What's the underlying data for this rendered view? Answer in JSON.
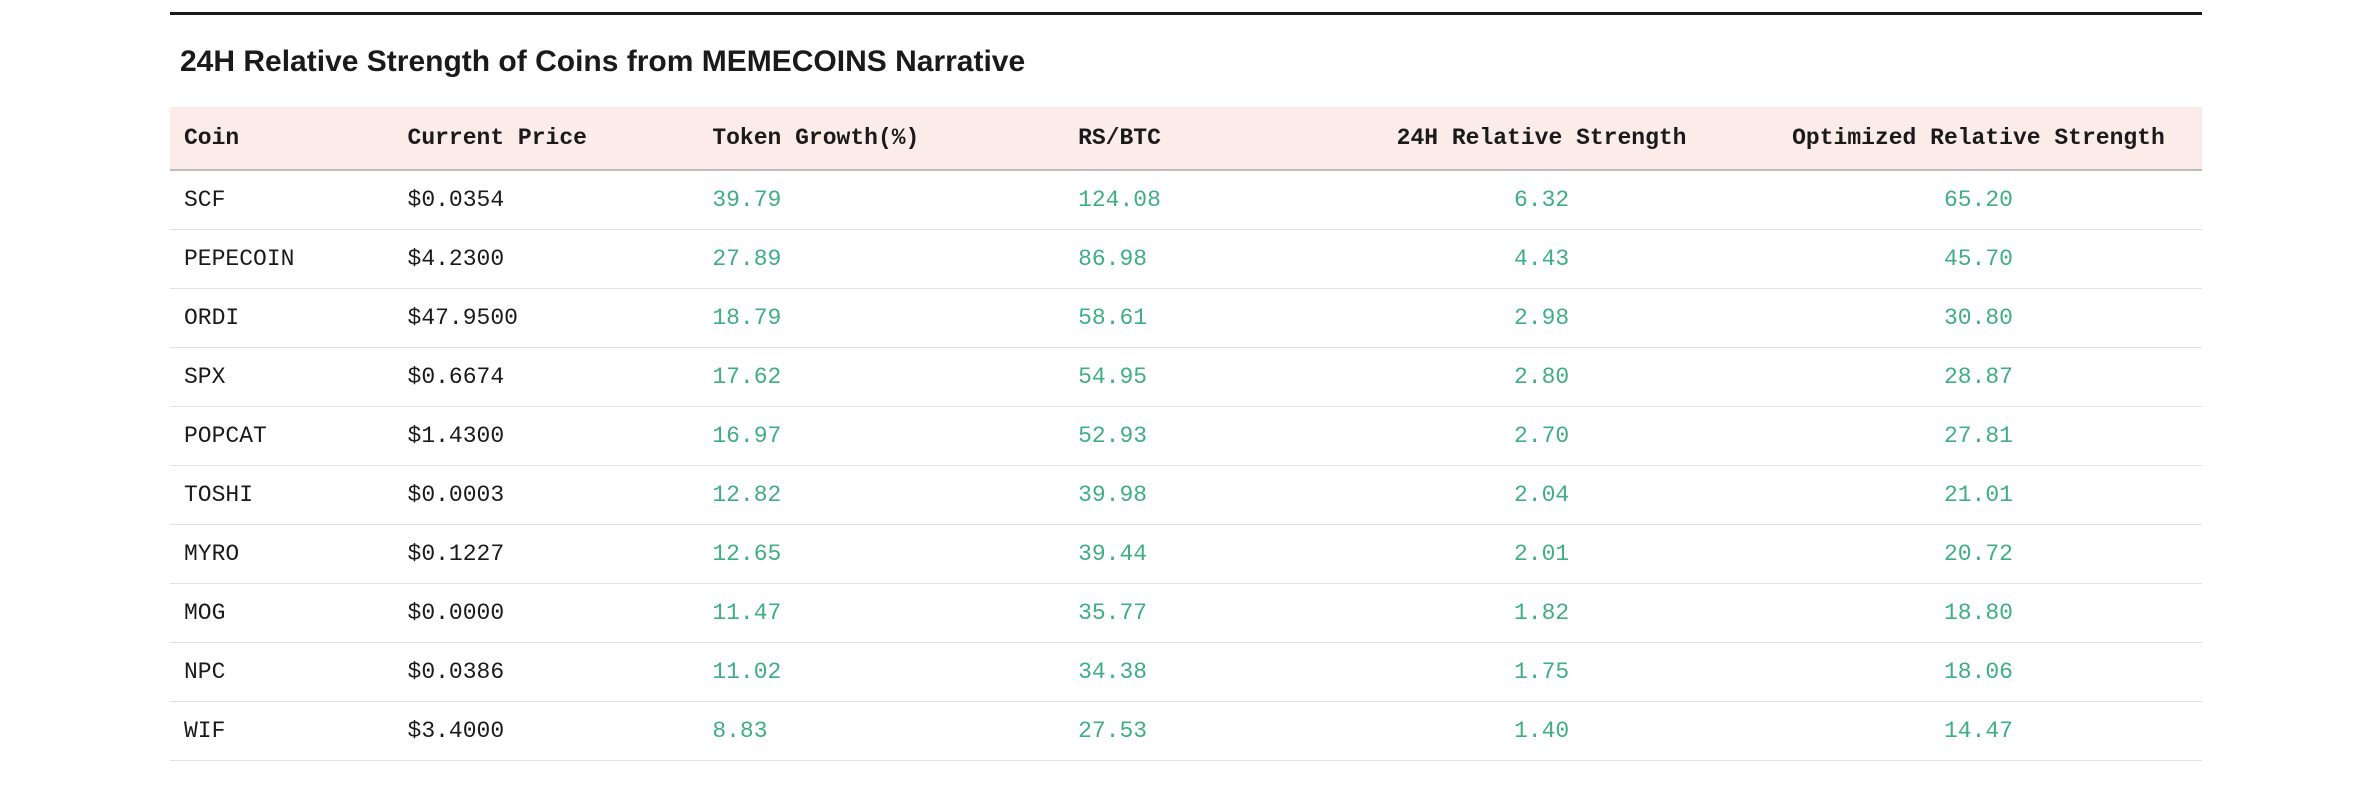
{
  "title": "24H Relative Strength of Coins from MEMECOINS Narrative",
  "table": {
    "header_bg": "#fbecea",
    "coin_text_color": "#1a1a1a",
    "price_text_color": "#1a1a1a",
    "positive_color": "#3fae84",
    "row_border_color": "#e2e2e2",
    "header_border_color": "#bdbdbd",
    "columns": {
      "coin": "Coin",
      "price": "Current Price",
      "growth": "Token Growth(%)",
      "rs_btc": "RS/BTC",
      "rs_24h": "24H Relative Strength",
      "rs_opt": "Optimized Relative Strength"
    },
    "rows": [
      {
        "coin": "SCF",
        "price": "$0.0354",
        "growth": "39.79",
        "rs_btc": "124.08",
        "rs_24h": "6.32",
        "rs_opt": "65.20"
      },
      {
        "coin": "PEPECOIN",
        "price": "$4.2300",
        "growth": "27.89",
        "rs_btc": "86.98",
        "rs_24h": "4.43",
        "rs_opt": "45.70"
      },
      {
        "coin": "ORDI",
        "price": "$47.9500",
        "growth": "18.79",
        "rs_btc": "58.61",
        "rs_24h": "2.98",
        "rs_opt": "30.80"
      },
      {
        "coin": "SPX",
        "price": "$0.6674",
        "growth": "17.62",
        "rs_btc": "54.95",
        "rs_24h": "2.80",
        "rs_opt": "28.87"
      },
      {
        "coin": "POPCAT",
        "price": "$1.4300",
        "growth": "16.97",
        "rs_btc": "52.93",
        "rs_24h": "2.70",
        "rs_opt": "27.81"
      },
      {
        "coin": "TOSHI",
        "price": "$0.0003",
        "growth": "12.82",
        "rs_btc": "39.98",
        "rs_24h": "2.04",
        "rs_opt": "21.01"
      },
      {
        "coin": "MYRO",
        "price": "$0.1227",
        "growth": "12.65",
        "rs_btc": "39.44",
        "rs_24h": "2.01",
        "rs_opt": "20.72"
      },
      {
        "coin": "MOG",
        "price": "$0.0000",
        "growth": "11.47",
        "rs_btc": "35.77",
        "rs_24h": "1.82",
        "rs_opt": "18.80"
      },
      {
        "coin": "NPC",
        "price": "$0.0386",
        "growth": "11.02",
        "rs_btc": "34.38",
        "rs_24h": "1.75",
        "rs_opt": "18.06"
      },
      {
        "coin": "WIF",
        "price": "$3.4000",
        "growth": "8.83",
        "rs_btc": "27.53",
        "rs_24h": "1.40",
        "rs_opt": "14.47"
      }
    ]
  }
}
